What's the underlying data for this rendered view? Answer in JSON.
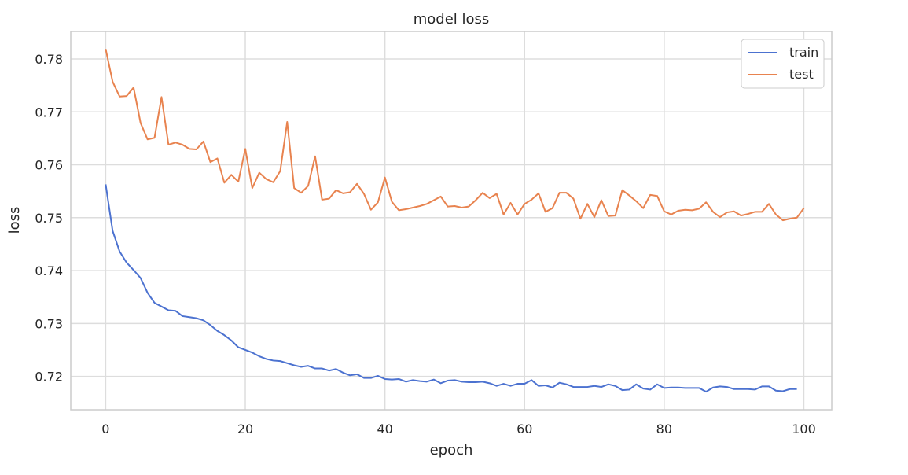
{
  "chart_data": {
    "type": "line",
    "title": "model loss",
    "xlabel": "epoch",
    "ylabel": "loss",
    "xlim": [
      -5,
      104
    ],
    "ylim": [
      0.7137,
      0.7852
    ],
    "xticks": [
      0,
      20,
      40,
      60,
      80,
      100
    ],
    "yticks": [
      0.72,
      0.73,
      0.74,
      0.75,
      0.76,
      0.77,
      0.78
    ],
    "ytick_labels": [
      "0.72",
      "0.73",
      "0.74",
      "0.75",
      "0.76",
      "0.77",
      "0.78"
    ],
    "grid": true,
    "legend_position": "top-right",
    "series": [
      {
        "name": "train",
        "color": "#4c72d0",
        "values": [
          0.7563,
          0.7475,
          0.7436,
          0.7415,
          0.7401,
          0.7386,
          0.7358,
          0.7339,
          0.7332,
          0.7325,
          0.7324,
          0.7314,
          0.7312,
          0.731,
          0.7306,
          0.7297,
          0.7286,
          0.7278,
          0.7268,
          0.7255,
          0.725,
          0.7245,
          0.7238,
          0.7233,
          0.723,
          0.7229,
          0.7225,
          0.7221,
          0.7218,
          0.722,
          0.7215,
          0.7215,
          0.7211,
          0.7214,
          0.7207,
          0.7202,
          0.7204,
          0.7197,
          0.7197,
          0.7201,
          0.7195,
          0.7194,
          0.7195,
          0.719,
          0.7193,
          0.7191,
          0.719,
          0.7194,
          0.7187,
          0.7192,
          0.7193,
          0.719,
          0.7189,
          0.7189,
          0.719,
          0.7187,
          0.7182,
          0.7186,
          0.7182,
          0.7186,
          0.7186,
          0.7193,
          0.7182,
          0.7183,
          0.7179,
          0.7188,
          0.7185,
          0.718,
          0.718,
          0.718,
          0.7182,
          0.718,
          0.7185,
          0.7182,
          0.7174,
          0.7175,
          0.7185,
          0.7177,
          0.7175,
          0.7185,
          0.7178,
          0.7179,
          0.7179,
          0.7178,
          0.7178,
          0.7178,
          0.7171,
          0.7179,
          0.7181,
          0.718,
          0.7176,
          0.7176,
          0.7176,
          0.7175,
          0.7181,
          0.7181,
          0.7173,
          0.7172,
          0.7176,
          0.7176
        ]
      },
      {
        "name": "test",
        "color": "#e8834f",
        "values": [
          0.7819,
          0.7757,
          0.7729,
          0.773,
          0.7746,
          0.7679,
          0.7648,
          0.7651,
          0.7728,
          0.7638,
          0.7642,
          0.7638,
          0.763,
          0.7629,
          0.7644,
          0.7605,
          0.7612,
          0.7566,
          0.7581,
          0.7568,
          0.763,
          0.7556,
          0.7585,
          0.7573,
          0.7567,
          0.7588,
          0.7681,
          0.7556,
          0.7547,
          0.756,
          0.7616,
          0.7534,
          0.7536,
          0.7552,
          0.7546,
          0.7548,
          0.7564,
          0.7545,
          0.7515,
          0.7529,
          0.7576,
          0.753,
          0.7514,
          0.7516,
          0.7519,
          0.7522,
          0.7526,
          0.7533,
          0.754,
          0.7521,
          0.7522,
          0.7519,
          0.7521,
          0.7533,
          0.7547,
          0.7537,
          0.7545,
          0.7506,
          0.7528,
          0.7506,
          0.7526,
          0.7534,
          0.7546,
          0.7511,
          0.7518,
          0.7547,
          0.7547,
          0.7536,
          0.7498,
          0.7526,
          0.7501,
          0.7533,
          0.7503,
          0.7504,
          0.7552,
          0.7542,
          0.7531,
          0.7518,
          0.7543,
          0.7541,
          0.7512,
          0.7506,
          0.7513,
          0.7515,
          0.7514,
          0.7517,
          0.7529,
          0.7511,
          0.7501,
          0.751,
          0.7512,
          0.7504,
          0.7507,
          0.7511,
          0.7511,
          0.7526,
          0.7506,
          0.7495,
          0.7498,
          0.75,
          0.7518
        ]
      }
    ]
  }
}
